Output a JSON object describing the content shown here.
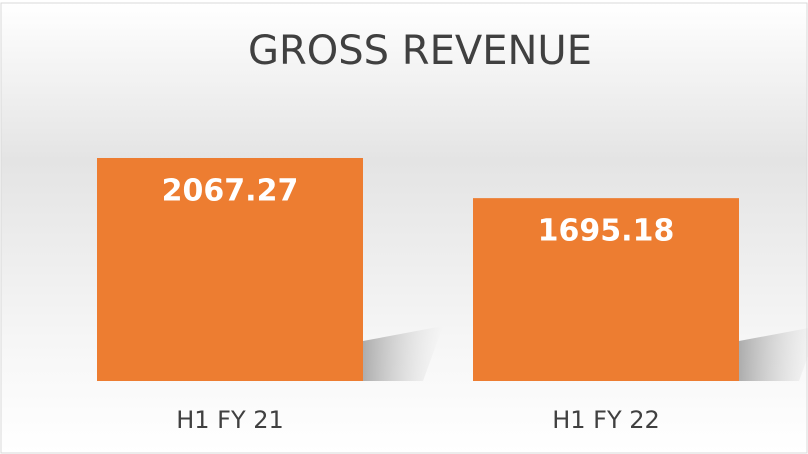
{
  "chart_data": {
    "type": "bar",
    "title": "GROSS REVENUE",
    "categories": [
      "H1 FY 21",
      "H1 FY 22"
    ],
    "values": [
      2067.27,
      1695.18
    ],
    "color": "#ed7d31"
  }
}
